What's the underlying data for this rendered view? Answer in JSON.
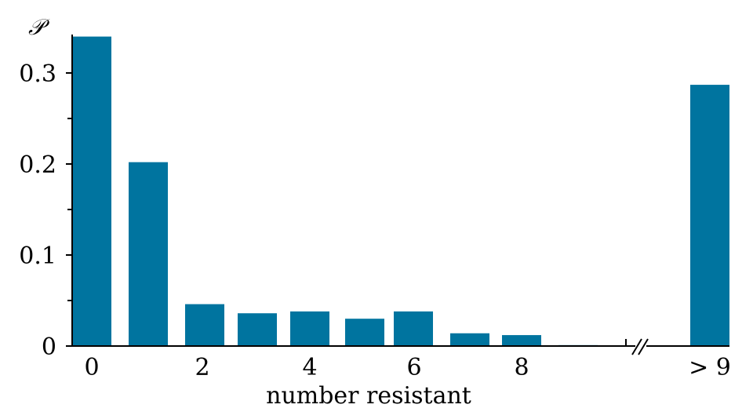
{
  "chart_data": {
    "type": "bar",
    "categories": [
      "0",
      "1",
      "2",
      "3",
      "4",
      "5",
      "6",
      "7",
      "8",
      "9",
      "> 9"
    ],
    "values": [
      0.34,
      0.202,
      0.046,
      0.036,
      0.038,
      0.03,
      0.038,
      0.014,
      0.012,
      0.001,
      0.287
    ],
    "xticks": [
      "0",
      "2",
      "4",
      "6",
      "8",
      "> 9"
    ],
    "yticks": [
      "0",
      "0.1",
      "0.2",
      "0.3"
    ],
    "xlabel": "number resistant",
    "ylabel": "𝒫",
    "ylim": [
      0,
      0.34
    ],
    "bar_color": "#00749f",
    "axis_break": true,
    "grid": false
  }
}
